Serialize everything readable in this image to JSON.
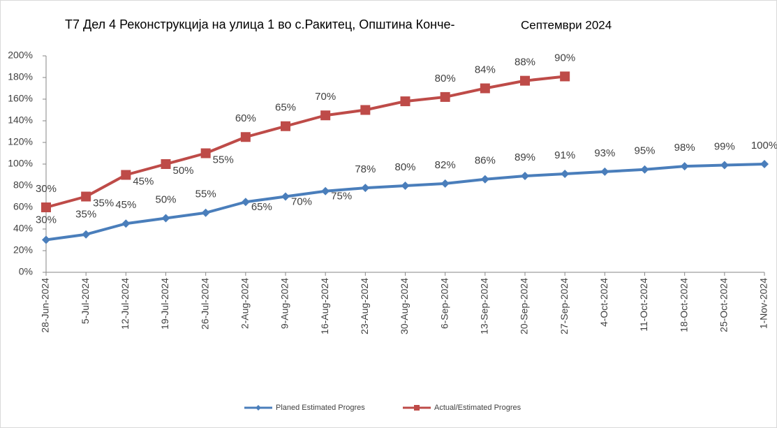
{
  "chart_data": {
    "type": "line",
    "stacked": true,
    "title": "T7 Дел 4 Реконструкција на улица 1 во с.Ракитец, Општина Конче-",
    "subtitle": "Септември 2024",
    "categories": [
      "28-Jun-2024",
      "5-Jul-2024",
      "12-Jul-2024",
      "19-Jul-2024",
      "26-Jul-2024",
      "2-Aug-2024",
      "9-Aug-2024",
      "16-Aug-2024",
      "23-Aug-2024",
      "30-Aug-2024",
      "6-Sep-2024",
      "13-Sep-2024",
      "20-Sep-2024",
      "27-Sep-2024",
      "4-Oct-2024",
      "11-Oct-2024",
      "18-Oct-2024",
      "25-Oct-2024",
      "1-Nov-2024"
    ],
    "series": [
      {
        "name": "Planed Estimated Progres",
        "color": "#4a7ebb",
        "marker": "diamond",
        "values": [
          30,
          35,
          45,
          50,
          55,
          65,
          70,
          75,
          78,
          80,
          82,
          86,
          89,
          91,
          93,
          95,
          98,
          99,
          100
        ],
        "value_labels": [
          "30%",
          "35%",
          "45%",
          "50%",
          "55%",
          "65%",
          "70%",
          "75%",
          "78%",
          "80%",
          "82%",
          "86%",
          "89%",
          "91%",
          "93%",
          "95%",
          "98%",
          "99%",
          "100%"
        ]
      },
      {
        "name": "Actual/Estimated Progres",
        "color": "#be4b48",
        "marker": "square",
        "values": [
          30,
          35,
          45,
          50,
          55,
          60,
          65,
          70,
          72,
          78,
          80,
          84,
          88,
          90,
          null,
          null,
          null,
          null,
          null
        ],
        "value_labels": [
          "30%",
          "35%",
          "45%",
          "50%",
          "55%",
          "60%",
          "65%",
          "70%",
          null,
          null,
          "80%",
          "84%",
          "88%",
          "90%",
          null,
          null,
          null,
          null,
          null
        ]
      }
    ],
    "ylim": [
      0,
      200
    ],
    "yticks": [
      {
        "value": 0,
        "label": "0%"
      },
      {
        "value": 20,
        "label": "20%"
      },
      {
        "value": 40,
        "label": "40%"
      },
      {
        "value": 60,
        "label": "60%"
      },
      {
        "value": 80,
        "label": "80%"
      },
      {
        "value": 100,
        "label": "100%"
      },
      {
        "value": 120,
        "label": "120%"
      },
      {
        "value": 140,
        "label": "140%"
      },
      {
        "value": 160,
        "label": "160%"
      },
      {
        "value": 180,
        "label": "180%"
      },
      {
        "value": 200,
        "label": "200%"
      }
    ],
    "grid": false,
    "legend": "bottom"
  }
}
